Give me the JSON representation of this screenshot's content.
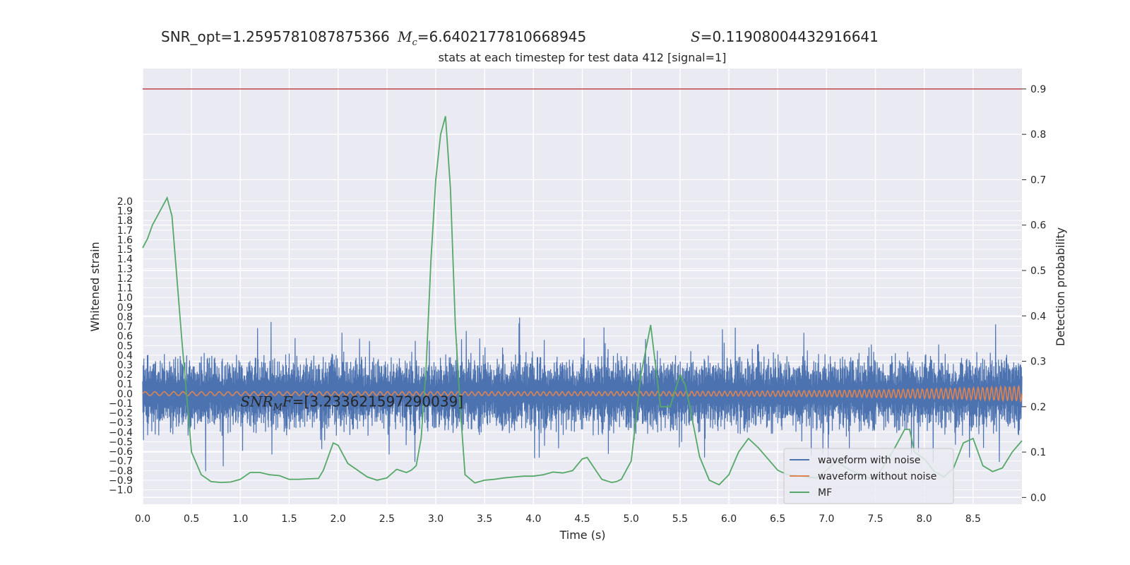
{
  "header": {
    "snr_label": "SNR_opt=",
    "snr_value": "1.2595781087875366",
    "mc_symbol_main": "M",
    "mc_symbol_sub": "c",
    "mc_value": "=6.6402177810668945",
    "s_symbol": "S",
    "s_value": "=0.11908004432916641"
  },
  "chart_data": {
    "type": "line",
    "title": "stats at each timestep for test data 412 [signal=1]",
    "xlabel": "Time (s)",
    "ylabel": "Whitened strain",
    "ylabel_right": "Detection probability",
    "xlim": [
      0.0,
      9.0
    ],
    "ylim_left": [
      -1.15,
      3.38
    ],
    "ylim_right": [
      -0.015,
      0.945
    ],
    "x_ticks": [
      "0.0",
      "0.5",
      "1.0",
      "1.5",
      "2.0",
      "2.5",
      "3.0",
      "3.5",
      "4.0",
      "4.5",
      "5.0",
      "5.5",
      "6.0",
      "6.5",
      "7.0",
      "7.5",
      "8.0",
      "8.5"
    ],
    "y_ticks_left": [
      "-1.0",
      "-0.9",
      "-0.8",
      "-0.7",
      "-0.6",
      "-0.5",
      "-0.4",
      "-0.3",
      "-0.2",
      "-0.1",
      "0.0",
      "0.1",
      "0.2",
      "0.3",
      "0.4",
      "0.5",
      "0.6",
      "0.7",
      "0.8",
      "0.9",
      "1.0",
      "1.1",
      "1.2",
      "1.3",
      "1.4",
      "1.5",
      "1.6",
      "1.7",
      "1.8",
      "1.9",
      "2.0"
    ],
    "y_ticks_right": [
      "0.0",
      "0.1",
      "0.2",
      "0.3",
      "0.4",
      "0.5",
      "0.6",
      "0.7",
      "0.8",
      "0.9"
    ],
    "threshold": {
      "value": 0.9,
      "color": "#c44e52"
    },
    "snr_mf_annotation": {
      "label_main": "SNR",
      "label_sub": "M",
      "label_tail": "F",
      "value": "=[3.233621597290039]",
      "x": 1.0,
      "y": -0.08
    },
    "legend": {
      "placement": "lower-right",
      "entries": [
        "waveform with noise",
        "waveform without noise",
        "MF"
      ]
    },
    "grid": true,
    "series": [
      {
        "name": "waveform with noise",
        "axis": "left",
        "color": "#4c72b0",
        "amplitude_envelope": {
          "typical": 0.45,
          "peak_max": 0.9,
          "peak_min": -0.88
        }
      },
      {
        "name": "waveform without noise",
        "axis": "left",
        "color": "#dd8452",
        "amplitude_envelope": {
          "start": 0.02,
          "end": 0.08
        }
      },
      {
        "name": "MF",
        "axis": "right",
        "color": "#55a868",
        "x": [
          0.0,
          0.05,
          0.1,
          0.2,
          0.25,
          0.3,
          0.4,
          0.5,
          0.6,
          0.7,
          0.8,
          0.9,
          1.0,
          1.1,
          1.2,
          1.3,
          1.4,
          1.5,
          1.6,
          1.7,
          1.8,
          1.85,
          1.9,
          1.95,
          2.0,
          2.1,
          2.2,
          2.3,
          2.4,
          2.5,
          2.6,
          2.7,
          2.75,
          2.8,
          2.85,
          2.9,
          2.95,
          3.0,
          3.05,
          3.1,
          3.15,
          3.2,
          3.25,
          3.3,
          3.4,
          3.5,
          3.6,
          3.7,
          3.8,
          3.9,
          4.0,
          4.1,
          4.2,
          4.3,
          4.4,
          4.5,
          4.55,
          4.6,
          4.7,
          4.8,
          4.85,
          4.9,
          5.0,
          5.1,
          5.2,
          5.3,
          5.4,
          5.5,
          5.55,
          5.6,
          5.7,
          5.8,
          5.9,
          6.0,
          6.1,
          6.2,
          6.3,
          6.4,
          6.5,
          6.6,
          6.7,
          6.8,
          6.9,
          7.0,
          7.1,
          7.2,
          7.3,
          7.4,
          7.5,
          7.6,
          7.7,
          7.8,
          7.85,
          7.9,
          8.0,
          8.1,
          8.2,
          8.3,
          8.4,
          8.5,
          8.6,
          8.7,
          8.8,
          8.9,
          9.0
        ],
        "y": [
          0.55,
          0.57,
          0.6,
          0.64,
          0.66,
          0.62,
          0.35,
          0.1,
          0.05,
          0.035,
          0.033,
          0.034,
          0.04,
          0.055,
          0.055,
          0.05,
          0.048,
          0.04,
          0.04,
          0.041,
          0.042,
          0.06,
          0.09,
          0.12,
          0.115,
          0.075,
          0.06,
          0.045,
          0.038,
          0.043,
          0.062,
          0.055,
          0.06,
          0.07,
          0.13,
          0.28,
          0.52,
          0.7,
          0.8,
          0.84,
          0.68,
          0.38,
          0.2,
          0.05,
          0.032,
          0.038,
          0.04,
          0.043,
          0.045,
          0.047,
          0.047,
          0.05,
          0.056,
          0.054,
          0.059,
          0.085,
          0.088,
          0.072,
          0.04,
          0.033,
          0.035,
          0.04,
          0.08,
          0.27,
          0.38,
          0.2,
          0.2,
          0.27,
          0.25,
          0.2,
          0.09,
          0.038,
          0.028,
          0.05,
          0.1,
          0.13,
          0.11,
          0.085,
          0.06,
          0.05,
          0.048,
          0.045,
          0.043,
          0.06,
          0.08,
          0.065,
          0.055,
          0.045,
          0.04,
          0.075,
          0.11,
          0.15,
          0.15,
          0.1,
          0.085,
          0.058,
          0.045,
          0.065,
          0.12,
          0.13,
          0.07,
          0.057,
          0.065,
          0.1,
          0.125
        ]
      }
    ]
  }
}
